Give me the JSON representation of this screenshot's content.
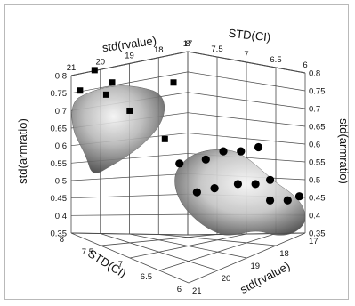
{
  "chart_data": {
    "type": "scatter",
    "projection": "3d",
    "title": "",
    "axes": {
      "x": {
        "label": "std(rvalue)",
        "range": [
          17,
          21
        ],
        "ticks": [
          "21",
          "20",
          "19",
          "18",
          "17"
        ]
      },
      "y": {
        "label": "STD(CI)",
        "range": [
          6,
          8
        ],
        "ticks": [
          "8",
          "7.5",
          "7",
          "6.5",
          "6"
        ]
      },
      "z": {
        "label": "std(armratio)",
        "range": [
          0.35,
          0.8
        ],
        "ticks": [
          "0.8",
          "0.75",
          "0.7",
          "0.65",
          "0.6",
          "0.55",
          "0.5",
          "0.45",
          "0.4",
          "0.35"
        ]
      }
    },
    "grid": true,
    "series": [
      {
        "marker": "square",
        "color": "#000000",
        "surface_color": "#9a9a9a",
        "points": [
          {
            "x": 20.6,
            "y": 7.8,
            "z": 0.75
          },
          {
            "x": 20.2,
            "y": 7.7,
            "z": 0.72
          },
          {
            "x": 20.9,
            "y": 7.9,
            "z": 0.7
          },
          {
            "x": 20.4,
            "y": 7.7,
            "z": 0.69
          },
          {
            "x": 19.1,
            "y": 7.2,
            "z": 0.72
          },
          {
            "x": 20.2,
            "y": 7.4,
            "z": 0.65
          },
          {
            "x": 19.8,
            "y": 7.0,
            "z": 0.58
          }
        ]
      },
      {
        "marker": "circle",
        "color": "#000000",
        "surface_color": "#a8a8a8",
        "points": [
          {
            "x": 19.5,
            "y": 6.9,
            "z": 0.52
          },
          {
            "x": 19.0,
            "y": 6.7,
            "z": 0.53
          },
          {
            "x": 18.7,
            "y": 6.55,
            "z": 0.55
          },
          {
            "x": 18.4,
            "y": 6.4,
            "z": 0.55
          },
          {
            "x": 18.2,
            "y": 6.2,
            "z": 0.56
          },
          {
            "x": 18.9,
            "y": 6.9,
            "z": 0.45
          },
          {
            "x": 18.6,
            "y": 6.75,
            "z": 0.46
          },
          {
            "x": 18.3,
            "y": 6.5,
            "z": 0.47
          },
          {
            "x": 18.0,
            "y": 6.35,
            "z": 0.47
          },
          {
            "x": 17.8,
            "y": 6.2,
            "z": 0.48
          },
          {
            "x": 17.6,
            "y": 6.3,
            "z": 0.43
          },
          {
            "x": 17.4,
            "y": 6.1,
            "z": 0.43
          },
          {
            "x": 17.2,
            "y": 6.0,
            "z": 0.44
          }
        ]
      }
    ]
  }
}
